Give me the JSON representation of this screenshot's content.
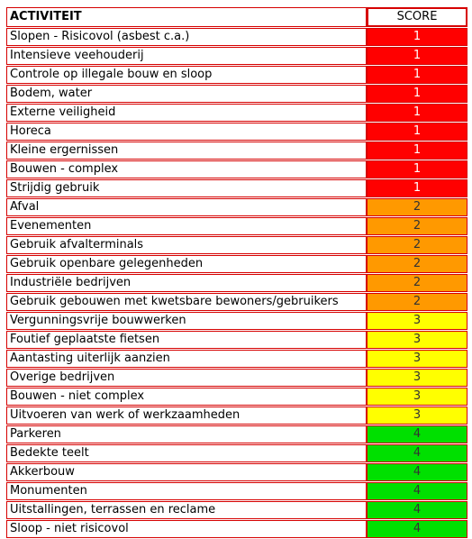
{
  "header": {
    "activity": "ACTIVITEIT",
    "score": "SCORE"
  },
  "colors": {
    "1": "#ff0000",
    "2": "#ff9900",
    "3": "#ffff00",
    "4": "#00e000"
  },
  "rows": [
    {
      "activity": "Slopen - Risicovol (asbest c.a.)",
      "score": "1"
    },
    {
      "activity": "Intensieve veehouderij",
      "score": "1"
    },
    {
      "activity": "Controle op illegale bouw en sloop",
      "score": "1"
    },
    {
      "activity": "Bodem, water",
      "score": "1"
    },
    {
      "activity": "Externe veiligheid",
      "score": "1"
    },
    {
      "activity": "Horeca",
      "score": "1"
    },
    {
      "activity": "Kleine ergernissen",
      "score": "1"
    },
    {
      "activity": "Bouwen - complex",
      "score": "1"
    },
    {
      "activity": "Strijdig gebruik",
      "score": "1"
    },
    {
      "activity": "Afval",
      "score": "2"
    },
    {
      "activity": "Evenementen",
      "score": "2"
    },
    {
      "activity": "Gebruik afvalterminals",
      "score": "2"
    },
    {
      "activity": "Gebruik openbare gelegenheden",
      "score": "2"
    },
    {
      "activity": "Industriële bedrijven",
      "score": "2"
    },
    {
      "activity": "Gebruik gebouwen met kwetsbare bewoners/gebruikers",
      "score": "2"
    },
    {
      "activity": "Vergunningsvrije bouwwerken",
      "score": "3"
    },
    {
      "activity": "Foutief geplaatste fietsen",
      "score": "3"
    },
    {
      "activity": "Aantasting uiterlijk aanzien",
      "score": "3"
    },
    {
      "activity": "Overige bedrijven",
      "score": "3"
    },
    {
      "activity": "Bouwen - niet complex",
      "score": "3"
    },
    {
      "activity": "Uitvoeren van werk of werkzaamheden",
      "score": "3"
    },
    {
      "activity": "Parkeren",
      "score": "4"
    },
    {
      "activity": "Bedekte teelt",
      "score": "4"
    },
    {
      "activity": "Akkerbouw",
      "score": "4"
    },
    {
      "activity": "Monumenten",
      "score": "4"
    },
    {
      "activity": "Uitstallingen, terrassen en reclame",
      "score": "4"
    },
    {
      "activity": "Sloop - niet risicovol",
      "score": "4"
    }
  ]
}
